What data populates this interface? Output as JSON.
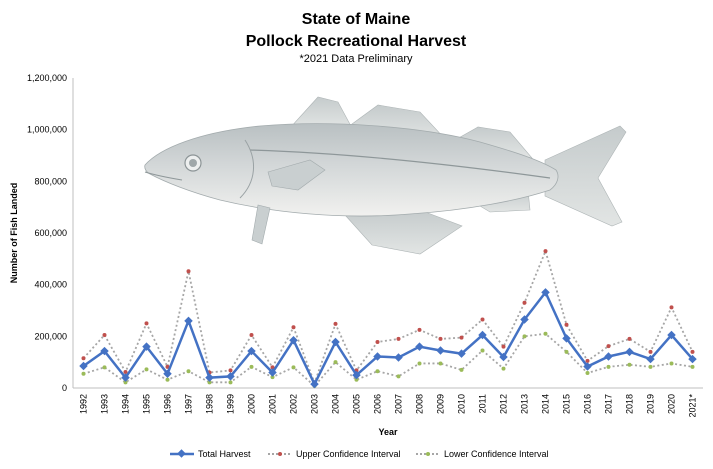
{
  "chart_data": {
    "type": "line",
    "title_line1": "State of Maine",
    "title_line2": "Pollock Recreational Harvest",
    "subtitle": "*2021 Data Preliminary",
    "xlabel": "Year",
    "ylabel": "Number of Fish Landed",
    "ylim": [
      0,
      1200000
    ],
    "yticks": [
      "0",
      "200,000",
      "400,000",
      "600,000",
      "800,000",
      "1,000,000",
      "1,200,000"
    ],
    "ytick_values": [
      0,
      200000,
      400000,
      600000,
      800000,
      1000000,
      1200000
    ],
    "categories": [
      "1992",
      "1993",
      "1994",
      "1995",
      "1996",
      "1997",
      "1998",
      "1999",
      "2000",
      "2001",
      "2002",
      "2003",
      "2004",
      "2005",
      "2006",
      "2007",
      "2008",
      "2009",
      "2010",
      "2011",
      "2012",
      "2013",
      "2014",
      "2015",
      "2016",
      "2017",
      "2018",
      "2019",
      "2020",
      "2021*"
    ],
    "grid": false,
    "legend_position": "bottom",
    "series": [
      {
        "name": "Total Harvest",
        "color": "#4472C4",
        "style": "solid-diamond",
        "values": [
          85000,
          143000,
          40000,
          160000,
          55000,
          260000,
          40000,
          45000,
          143000,
          60000,
          185000,
          15000,
          178000,
          50000,
          122000,
          118000,
          160000,
          145000,
          133000,
          205000,
          120000,
          265000,
          370000,
          192000,
          83000,
          122000,
          140000,
          112000,
          205000,
          112000
        ]
      },
      {
        "name": "Upper Confidence Interval",
        "color": "#C0504D",
        "line_color": "#A6A6A6",
        "style": "dotted-dot",
        "values": [
          115000,
          205000,
          62000,
          250000,
          82000,
          452000,
          60000,
          68000,
          205000,
          80000,
          235000,
          20000,
          248000,
          68000,
          178000,
          190000,
          225000,
          190000,
          195000,
          265000,
          160000,
          330000,
          530000,
          245000,
          105000,
          162000,
          190000,
          140000,
          312000,
          140000
        ]
      },
      {
        "name": "Lower Confidence Interval",
        "color": "#9BBB59",
        "line_color": "#A6A6A6",
        "style": "dotted-dot",
        "values": [
          55000,
          80000,
          22000,
          72000,
          32000,
          65000,
          22000,
          22000,
          82000,
          42000,
          80000,
          8000,
          100000,
          32000,
          65000,
          45000,
          95000,
          95000,
          70000,
          145000,
          75000,
          200000,
          210000,
          140000,
          58000,
          82000,
          90000,
          82000,
          95000,
          82000
        ]
      }
    ]
  },
  "illustration": {
    "name": "pollock-illustration",
    "body_color": "#D9DCDE",
    "fin_color": "#CDD2D3"
  }
}
